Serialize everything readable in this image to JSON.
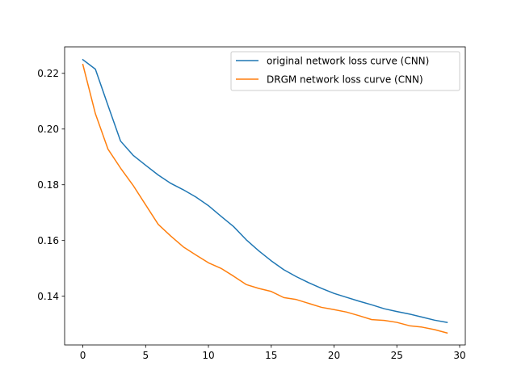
{
  "chart_data": {
    "type": "line",
    "title": "",
    "xlabel": "",
    "ylabel": "",
    "xlim": [
      -1.45,
      30.45
    ],
    "ylim": [
      0.1225,
      0.2295
    ],
    "x_ticks": [
      0,
      5,
      10,
      15,
      20,
      25,
      30
    ],
    "x_tick_labels": [
      "0",
      "5",
      "10",
      "15",
      "20",
      "25",
      "30"
    ],
    "y_ticks": [
      0.14,
      0.16,
      0.18,
      0.2,
      0.22
    ],
    "y_tick_labels": [
      "0.14",
      "0.16",
      "0.18",
      "0.20",
      "0.22"
    ],
    "grid": false,
    "legend_position": "top-right",
    "x": [
      0,
      1,
      2,
      3,
      4,
      5,
      6,
      7,
      8,
      9,
      10,
      11,
      12,
      13,
      14,
      15,
      16,
      17,
      18,
      19,
      20,
      21,
      22,
      23,
      24,
      25,
      26,
      27,
      28,
      29
    ],
    "series": [
      {
        "name": "original network loss curve (CNN)",
        "color": "#1f77b4",
        "values": [
          0.2249,
          0.2215,
          0.2085,
          0.1957,
          0.1906,
          0.187,
          0.1835,
          0.1805,
          0.1782,
          0.1756,
          0.1725,
          0.1687,
          0.165,
          0.1603,
          0.1563,
          0.1527,
          0.1495,
          0.147,
          0.1448,
          0.1428,
          0.141,
          0.1396,
          0.1382,
          0.1369,
          0.1355,
          0.1345,
          0.1336,
          0.1325,
          0.1314,
          0.1306
        ]
      },
      {
        "name": "DRGM network loss curve (CNN)",
        "color": "#ff7f0e",
        "values": [
          0.2232,
          0.2055,
          0.1928,
          0.186,
          0.1798,
          0.1728,
          0.1658,
          0.1616,
          0.1577,
          0.1548,
          0.152,
          0.15,
          0.1472,
          0.1442,
          0.1428,
          0.1417,
          0.1395,
          0.1388,
          0.1374,
          0.136,
          0.1352,
          0.1343,
          0.133,
          0.1316,
          0.1313,
          0.1306,
          0.1294,
          0.1289,
          0.128,
          0.1268
        ]
      }
    ]
  }
}
